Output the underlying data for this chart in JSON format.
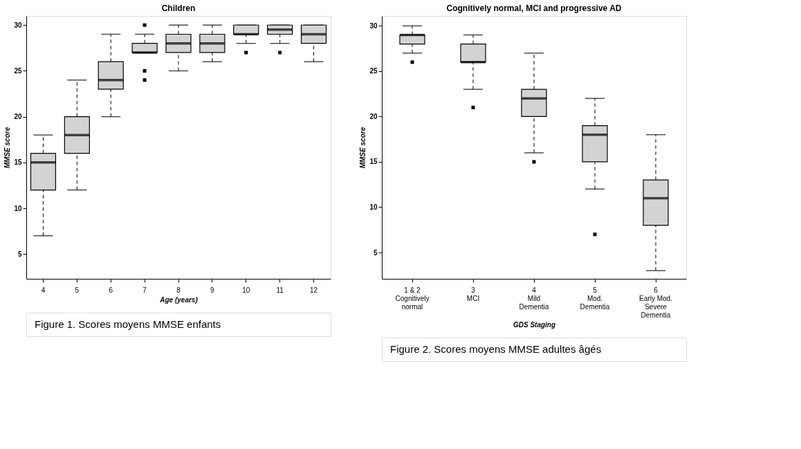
{
  "chart_data": [
    {
      "type": "box",
      "title": "Children",
      "xlabel": "Age (years)",
      "ylabel": "MMSE score",
      "categories": [
        "4",
        "5",
        "6",
        "7",
        "8",
        "9",
        "10",
        "11",
        "12"
      ],
      "ylim": [
        2.3,
        31
      ],
      "yticks": [
        5,
        10,
        15,
        20,
        25,
        30
      ],
      "annotations": [
        "Figure 1. Scores moyens MMSE enfants"
      ],
      "series": [
        {
          "color": "#d3d3d3",
          "boxes": [
            {
              "low": 7,
              "q1": 12,
              "median": 15,
              "q3": 16,
              "high": 18
            },
            {
              "low": 12,
              "q1": 16,
              "median": 18,
              "q3": 20,
              "high": 24
            },
            {
              "low": 20,
              "q1": 23,
              "median": 24,
              "q3": 26,
              "high": 29
            },
            {
              "low": 27,
              "q1": 27,
              "median": 27,
              "q3": 28,
              "high": 29,
              "outliers": [
                30,
                25,
                24
              ]
            },
            {
              "low": 25,
              "q1": 27,
              "median": 28,
              "q3": 29,
              "high": 30
            },
            {
              "low": 26,
              "q1": 27,
              "median": 28,
              "q3": 29,
              "high": 30
            },
            {
              "low": 28,
              "q1": 29,
              "median": 29,
              "q3": 30,
              "high": 30,
              "outliers": [
                27
              ]
            },
            {
              "low": 28,
              "q1": 29,
              "median": 29.5,
              "q3": 30,
              "high": 30,
              "outliers": [
                27
              ]
            },
            {
              "low": 26,
              "q1": 28,
              "median": 29,
              "q3": 30,
              "high": 30
            }
          ]
        }
      ]
    },
    {
      "type": "box",
      "title": "Cognitively normal, MCI and progressive AD",
      "xlabel": "GDS Staging",
      "ylabel": "MMSE score",
      "categories": [
        "1 & 2\nCognitively\nnormal",
        "3\nMCI",
        "4\nMild\nDementia",
        "5\nMod.\nDementia",
        "6\nEarly Mod.\nSevere\nDementia"
      ],
      "ylim": [
        2.1,
        31.1
      ],
      "yticks": [
        5,
        10,
        15,
        20,
        25,
        30
      ],
      "annotations": [
        "Figure 2. Scores moyens MMSE adultes âgés"
      ],
      "series": [
        {
          "color": "#d3d3d3",
          "boxes": [
            {
              "low": 27,
              "q1": 28,
              "median": 29,
              "q3": 29,
              "high": 30,
              "outliers": [
                26
              ]
            },
            {
              "low": 23,
              "q1": 26,
              "median": 26,
              "q3": 28,
              "high": 29,
              "outliers": [
                21
              ]
            },
            {
              "low": 16,
              "q1": 20,
              "median": 22,
              "q3": 23,
              "high": 27,
              "outliers": [
                15
              ]
            },
            {
              "low": 12,
              "q1": 15,
              "median": 18,
              "q3": 19,
              "high": 22,
              "outliers": [
                7
              ]
            },
            {
              "low": 3,
              "q1": 8,
              "median": 11,
              "q3": 13,
              "high": 18
            }
          ]
        }
      ]
    }
  ]
}
